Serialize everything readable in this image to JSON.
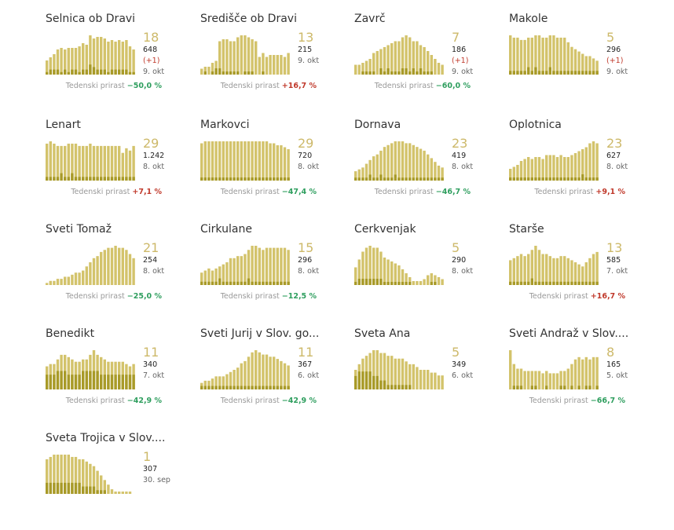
{
  "weekly_label": "Tedenski prirast",
  "colors": {
    "bar": "#d3c36b",
    "bar_dark": "#a89a28",
    "big": "#cdb96a",
    "pos": "#c0392b",
    "neg": "#2e9e5e"
  },
  "chart_data": [
    {
      "type": "bar",
      "name": "Selnica ob Dravi",
      "big": "18",
      "total": "648",
      "delta": "(+1)",
      "date": "9. okt",
      "weekly": "−50,0 %",
      "weekly_sign": "neg",
      "values": [
        9,
        11,
        13,
        16,
        17,
        16,
        17,
        17,
        17,
        18,
        20,
        19,
        25,
        23,
        24,
        24,
        23,
        21,
        22,
        21,
        22,
        21,
        22,
        18,
        16
      ],
      "dark": [
        1,
        2,
        2,
        2,
        1,
        2,
        1,
        2,
        2,
        1,
        2,
        2,
        4,
        3,
        2,
        2,
        2,
        1,
        2,
        2,
        2,
        2,
        2,
        1,
        1
      ]
    },
    {
      "type": "bar",
      "name": "Središče ob Dravi",
      "big": "13",
      "total": "215",
      "delta": "",
      "date": "9. okt",
      "weekly": "+16,7 %",
      "weekly_sign": "pos",
      "values": [
        3,
        4,
        4,
        6,
        7,
        17,
        18,
        18,
        17,
        17,
        19,
        20,
        20,
        19,
        18,
        17,
        9,
        11,
        9,
        10,
        10,
        10,
        10,
        9,
        11
      ],
      "dark": [
        0,
        1,
        0,
        1,
        2,
        2,
        1,
        1,
        1,
        1,
        1,
        0,
        1,
        1,
        1,
        0,
        0,
        1,
        0,
        0,
        0,
        0,
        0,
        0,
        0
      ]
    },
    {
      "type": "bar",
      "name": "Zavrč",
      "big": "7",
      "total": "186",
      "delta": "(+1)",
      "date": "9. okt",
      "weekly": "−60,0 %",
      "weekly_sign": "neg",
      "values": [
        5,
        5,
        6,
        7,
        8,
        11,
        12,
        13,
        14,
        15,
        16,
        17,
        17,
        19,
        20,
        19,
        17,
        17,
        15,
        14,
        12,
        10,
        8,
        6,
        5
      ],
      "dark": [
        0,
        0,
        1,
        1,
        1,
        1,
        0,
        2,
        1,
        2,
        1,
        1,
        1,
        2,
        2,
        1,
        2,
        1,
        2,
        1,
        1,
        1,
        0,
        0,
        0
      ]
    },
    {
      "type": "bar",
      "name": "Makole",
      "big": "5",
      "total": "296",
      "delta": "(+1)",
      "date": "9. okt",
      "weekly": "",
      "weekly_sign": "neg",
      "values": [
        17,
        16,
        16,
        15,
        15,
        16,
        16,
        17,
        17,
        16,
        16,
        17,
        17,
        16,
        16,
        16,
        14,
        12,
        11,
        10,
        9,
        8,
        8,
        7,
        6
      ],
      "dark": [
        1,
        1,
        1,
        1,
        1,
        2,
        1,
        2,
        1,
        1,
        1,
        2,
        1,
        1,
        1,
        1,
        1,
        1,
        1,
        1,
        1,
        1,
        1,
        1,
        1
      ]
    },
    {
      "type": "bar",
      "name": "Lenart",
      "big": "29",
      "total": "1.242",
      "delta": "",
      "date": "8. okt",
      "weekly": "+7,1 %",
      "weekly_sign": "pos",
      "values": [
        16,
        17,
        16,
        15,
        15,
        15,
        16,
        16,
        16,
        15,
        15,
        15,
        16,
        15,
        15,
        15,
        15,
        15,
        15,
        15,
        15,
        12,
        14,
        13,
        15
      ],
      "dark": [
        1,
        1,
        1,
        1,
        2,
        1,
        1,
        2,
        1,
        1,
        1,
        1,
        1,
        1,
        1,
        1,
        1,
        1,
        1,
        1,
        1,
        1,
        1,
        1,
        1
      ]
    },
    {
      "type": "bar",
      "name": "Markovci",
      "big": "29",
      "total": "720",
      "delta": "",
      "date": "8. okt",
      "weekly": "−47,4 %",
      "weekly_sign": "neg",
      "values": [
        19,
        20,
        20,
        20,
        20,
        20,
        20,
        20,
        20,
        20,
        20,
        20,
        20,
        20,
        20,
        20,
        20,
        20,
        20,
        19,
        19,
        18,
        18,
        17,
        16
      ],
      "dark": [
        1,
        1,
        1,
        1,
        1,
        1,
        1,
        1,
        1,
        1,
        1,
        1,
        1,
        1,
        1,
        1,
        1,
        1,
        1,
        1,
        1,
        1,
        1,
        1,
        1
      ]
    },
    {
      "type": "bar",
      "name": "Dornava",
      "big": "23",
      "total": "419",
      "delta": "",
      "date": "8. okt",
      "weekly": "−46,7 %",
      "weekly_sign": "neg",
      "values": [
        5,
        6,
        7,
        9,
        11,
        13,
        14,
        16,
        18,
        19,
        20,
        21,
        21,
        21,
        20,
        20,
        19,
        18,
        17,
        16,
        14,
        12,
        10,
        8,
        7
      ],
      "dark": [
        1,
        1,
        1,
        1,
        2,
        1,
        1,
        2,
        1,
        1,
        1,
        2,
        1,
        1,
        1,
        1,
        1,
        1,
        1,
        1,
        1,
        1,
        1,
        1,
        1
      ]
    },
    {
      "type": "bar",
      "name": "Oplotnica",
      "big": "23",
      "total": "627",
      "delta": "",
      "date": "8. okt",
      "weekly": "+9,1 %",
      "weekly_sign": "pos",
      "values": [
        6,
        7,
        8,
        10,
        11,
        12,
        11,
        12,
        12,
        11,
        13,
        13,
        13,
        12,
        13,
        12,
        12,
        13,
        14,
        15,
        16,
        17,
        19,
        20,
        19
      ],
      "dark": [
        1,
        1,
        1,
        1,
        1,
        1,
        1,
        1,
        1,
        1,
        1,
        1,
        1,
        1,
        1,
        1,
        1,
        1,
        1,
        1,
        2,
        1,
        1,
        1,
        1
      ]
    },
    {
      "type": "bar",
      "name": "Sveti Tomaž",
      "big": "21",
      "total": "254",
      "delta": "",
      "date": "8. okt",
      "weekly": "−25,0 %",
      "weekly_sign": "neg",
      "values": [
        1,
        2,
        2,
        3,
        3,
        4,
        4,
        5,
        6,
        6,
        7,
        9,
        11,
        13,
        14,
        16,
        17,
        18,
        18,
        19,
        18,
        18,
        17,
        15,
        13
      ],
      "dark": [
        0,
        0,
        0,
        0,
        0,
        0,
        0,
        0,
        0,
        0,
        0,
        0,
        0,
        0,
        0,
        0,
        0,
        0,
        0,
        0,
        0,
        0,
        0,
        0,
        0
      ]
    },
    {
      "type": "bar",
      "name": "Cirkulane",
      "big": "15",
      "total": "296",
      "delta": "",
      "date": "8. okt",
      "weekly": "−12,5 %",
      "weekly_sign": "neg",
      "values": [
        6,
        7,
        8,
        7,
        8,
        9,
        10,
        11,
        13,
        13,
        14,
        14,
        15,
        17,
        19,
        19,
        18,
        17,
        18,
        18,
        18,
        18,
        18,
        18,
        17
      ],
      "dark": [
        1,
        1,
        1,
        1,
        1,
        2,
        1,
        1,
        1,
        1,
        1,
        1,
        1,
        2,
        1,
        1,
        1,
        1,
        1,
        1,
        1,
        1,
        1,
        1,
        1
      ]
    },
    {
      "type": "bar",
      "name": "Cerkvenjak",
      "big": "5",
      "total": "290",
      "delta": "",
      "date": "8. okt",
      "weekly": "",
      "weekly_sign": "neg",
      "values": [
        9,
        13,
        17,
        19,
        20,
        19,
        19,
        17,
        14,
        13,
        12,
        11,
        10,
        8,
        6,
        4,
        2,
        2,
        2,
        3,
        5,
        6,
        5,
        4,
        3
      ],
      "dark": [
        1,
        2,
        2,
        2,
        2,
        2,
        2,
        2,
        1,
        1,
        1,
        1,
        1,
        1,
        1,
        1,
        0,
        0,
        0,
        0,
        0,
        1,
        1,
        0,
        0
      ]
    },
    {
      "type": "bar",
      "name": "Starše",
      "big": "13",
      "total": "585",
      "delta": "",
      "date": "7. okt",
      "weekly": "+16,7 %",
      "weekly_sign": "pos",
      "values": [
        12,
        13,
        14,
        15,
        14,
        15,
        17,
        19,
        17,
        15,
        15,
        14,
        13,
        13,
        14,
        14,
        13,
        12,
        11,
        10,
        9,
        11,
        13,
        15,
        16
      ],
      "dark": [
        1,
        1,
        1,
        1,
        1,
        1,
        2,
        1,
        1,
        1,
        1,
        1,
        1,
        1,
        1,
        1,
        1,
        1,
        1,
        1,
        1,
        1,
        1,
        1,
        1
      ]
    },
    {
      "type": "bar",
      "name": "Benedikt",
      "big": "11",
      "total": "340",
      "delta": "",
      "date": "7. okt",
      "weekly": "−42,9 %",
      "weekly_sign": "neg",
      "values": [
        10,
        11,
        11,
        13,
        15,
        15,
        14,
        13,
        12,
        12,
        13,
        13,
        15,
        17,
        15,
        14,
        13,
        12,
        12,
        12,
        12,
        12,
        11,
        10,
        11
      ],
      "dark": [
        4,
        4,
        4,
        5,
        5,
        5,
        4,
        4,
        4,
        4,
        5,
        5,
        5,
        5,
        5,
        4,
        4,
        4,
        4,
        4,
        4,
        4,
        4,
        4,
        4
      ]
    },
    {
      "type": "bar",
      "name": "Sveti Jurij v Slov. go...",
      "big": "11",
      "total": "367",
      "delta": "",
      "date": "6. okt",
      "weekly": "−42,9 %",
      "weekly_sign": "neg",
      "values": [
        3,
        4,
        4,
        5,
        6,
        6,
        6,
        7,
        8,
        9,
        10,
        12,
        13,
        15,
        17,
        18,
        17,
        16,
        16,
        15,
        15,
        14,
        13,
        12,
        11
      ],
      "dark": [
        1,
        1,
        1,
        1,
        1,
        1,
        1,
        1,
        1,
        1,
        1,
        1,
        1,
        1,
        1,
        1,
        1,
        1,
        1,
        1,
        1,
        1,
        1,
        1,
        1
      ]
    },
    {
      "type": "bar",
      "name": "Sveta Ana",
      "big": "5",
      "total": "349",
      "delta": "",
      "date": "6. okt",
      "weekly": "",
      "weekly_sign": "neg",
      "values": [
        7,
        9,
        11,
        12,
        13,
        14,
        14,
        13,
        13,
        12,
        12,
        11,
        11,
        11,
        10,
        9,
        9,
        8,
        7,
        7,
        7,
        6,
        6,
        5,
        5
      ],
      "dark": [
        3,
        4,
        4,
        4,
        4,
        3,
        3,
        2,
        2,
        1,
        1,
        1,
        1,
        1,
        1,
        1,
        0,
        0,
        0,
        0,
        0,
        0,
        0,
        0,
        0
      ]
    },
    {
      "type": "bar",
      "name": "Sveti Andraž v Slov....",
      "big": "8",
      "total": "165",
      "delta": "",
      "date": "5. okt",
      "weekly": "−66,7 %",
      "weekly_sign": "neg",
      "values": [
        17,
        11,
        9,
        9,
        8,
        8,
        8,
        8,
        8,
        7,
        8,
        7,
        7,
        7,
        8,
        8,
        9,
        11,
        13,
        14,
        13,
        14,
        13,
        14,
        14
      ],
      "dark": [
        0,
        1,
        1,
        1,
        0,
        0,
        1,
        1,
        0,
        0,
        1,
        0,
        0,
        0,
        1,
        1,
        0,
        1,
        0,
        1,
        0,
        1,
        1,
        0,
        1
      ]
    },
    {
      "type": "bar",
      "name": "Sveta Trojica v Slov....",
      "big": "1",
      "total": "307",
      "delta": "",
      "date": "30. sep",
      "weekly": "",
      "weekly_sign": "neg",
      "values": [
        15,
        16,
        17,
        17,
        17,
        17,
        17,
        16,
        16,
        15,
        15,
        14,
        13,
        12,
        10,
        8,
        6,
        4,
        2,
        1,
        1,
        1,
        1,
        1,
        0
      ],
      "dark": [
        3,
        3,
        3,
        3,
        3,
        3,
        3,
        3,
        3,
        3,
        2,
        2,
        2,
        2,
        1,
        1,
        1,
        0,
        0,
        0,
        0,
        0,
        0,
        0,
        0
      ]
    }
  ]
}
